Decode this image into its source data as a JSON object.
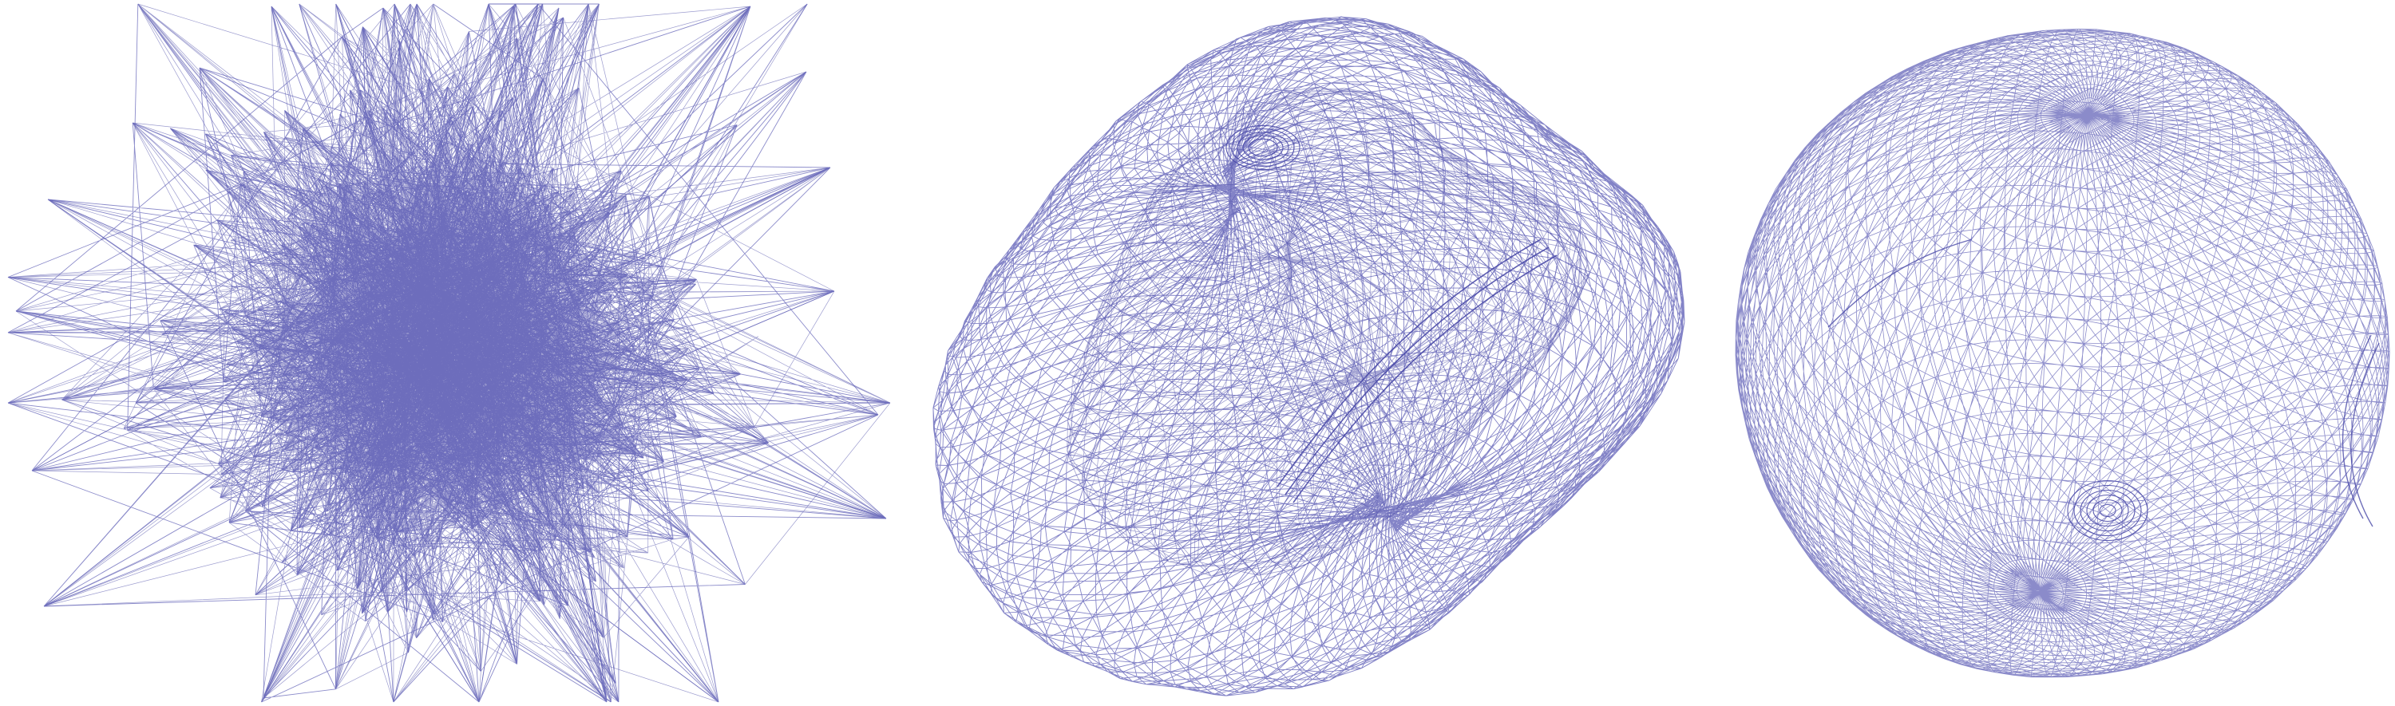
{
  "figure": {
    "panels": [
      {
        "id": "random-embedding",
        "kind": "tangled-graph"
      },
      {
        "id": "warped-mesh",
        "kind": "irregular-ellipsoid-mesh"
      },
      {
        "id": "sphere-mesh",
        "kind": "sphere-mesh"
      }
    ],
    "colors": {
      "background": "#ffffff",
      "edge": "#5a5ab4",
      "edge_dense": "#4a4aa8"
    }
  }
}
